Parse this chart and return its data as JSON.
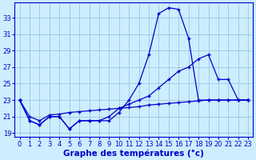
{
  "background_color": "#cceeff",
  "grid_color": "#99bbdd",
  "line_color": "#0000cc",
  "xlabel": "Graphe des températures (°c)",
  "xlabel_fontsize": 7.5,
  "tick_fontsize": 6,
  "ylabel_ticks": [
    19,
    21,
    23,
    25,
    27,
    29,
    31,
    33
  ],
  "xlim": [
    -0.5,
    23.5
  ],
  "ylim": [
    18.5,
    34.8
  ],
  "line1_x": [
    0,
    1,
    2,
    3,
    4,
    5,
    6,
    7,
    8,
    9,
    10,
    11,
    12,
    13,
    14,
    15,
    16,
    17,
    18,
    19,
    20,
    21,
    22,
    23
  ],
  "line1_y": [
    23,
    20.5,
    20.0,
    21.0,
    21.0,
    19.5,
    20.5,
    20.5,
    20.5,
    20.5,
    21.5,
    23.0,
    25.0,
    28.5,
    33.5,
    34.2,
    34.0,
    30.5,
    23.0,
    23.0,
    23.0,
    23.0,
    23.0,
    23.0
  ],
  "line2_x": [
    0,
    1,
    2,
    3,
    4,
    5,
    6,
    7,
    8,
    9,
    10,
    11,
    12,
    13,
    14,
    15,
    16,
    17,
    18,
    19,
    20,
    21,
    22,
    23
  ],
  "line2_y": [
    23,
    20.5,
    20.0,
    21.0,
    21.0,
    19.5,
    20.5,
    20.5,
    20.5,
    21.0,
    22.0,
    22.5,
    23.0,
    23.5,
    24.5,
    25.5,
    26.5,
    27.0,
    28.0,
    28.5,
    25.5,
    25.5,
    23.0,
    23.0
  ],
  "line3_x": [
    0,
    1,
    2,
    3,
    4,
    5,
    6,
    7,
    8,
    9,
    10,
    11,
    12,
    13,
    14,
    15,
    16,
    17,
    18,
    19,
    20,
    21,
    22,
    23
  ],
  "line3_y": [
    23,
    21.0,
    20.5,
    21.2,
    21.3,
    21.5,
    21.6,
    21.7,
    21.8,
    21.9,
    22.0,
    22.1,
    22.2,
    22.4,
    22.5,
    22.6,
    22.7,
    22.8,
    22.9,
    23.0,
    23.0,
    23.0,
    23.0,
    23.0
  ]
}
